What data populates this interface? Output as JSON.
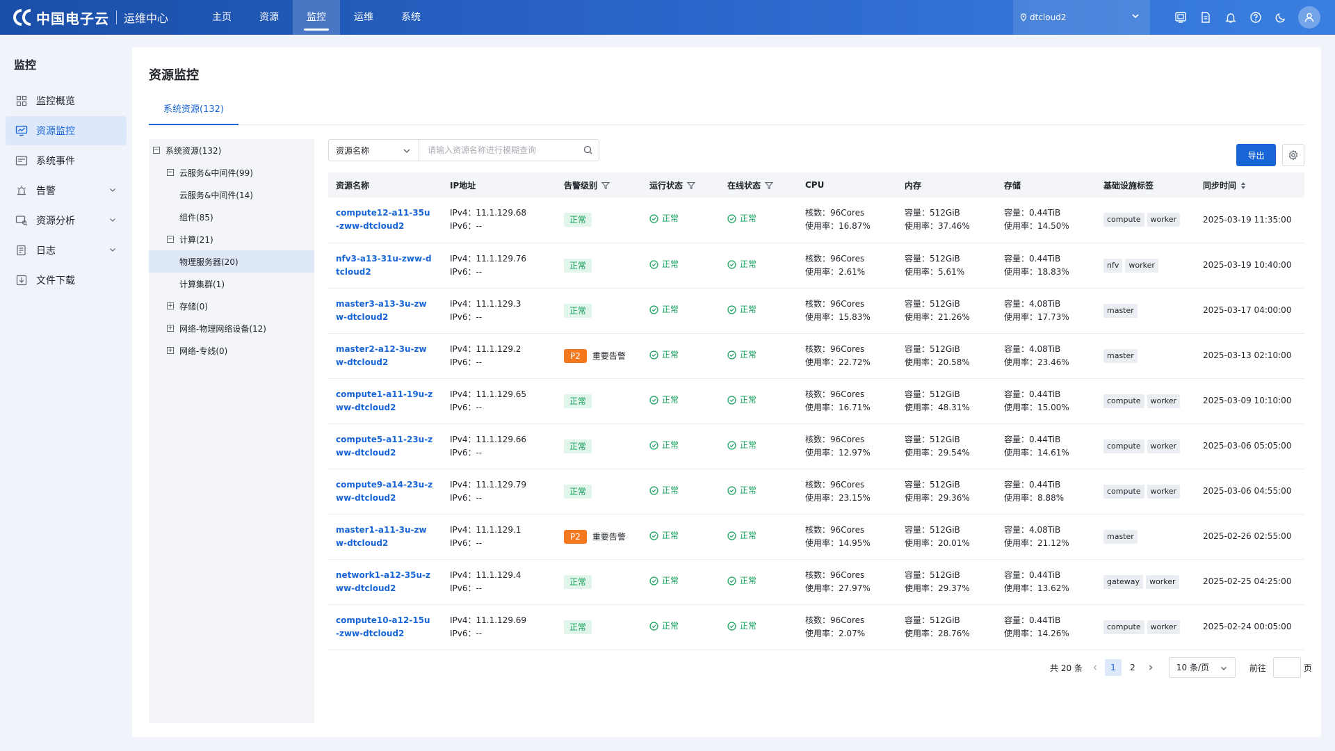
{
  "app": {
    "brand": "中国电子云",
    "subtitle": "运维中心"
  },
  "nav": [
    {
      "label": "主页",
      "active": false
    },
    {
      "label": "资源",
      "active": false
    },
    {
      "label": "监控",
      "active": true
    },
    {
      "label": "运维",
      "active": false
    },
    {
      "label": "系统",
      "active": false
    }
  ],
  "env": {
    "value": "dtcloud2"
  },
  "sidebar": {
    "title": "监控",
    "items": [
      {
        "label": "监控概览",
        "icon": "grid-icon"
      },
      {
        "label": "资源监控",
        "icon": "monitor-chart-icon",
        "active": true
      },
      {
        "label": "系统事件",
        "icon": "event-icon"
      },
      {
        "label": "告警",
        "icon": "alarm-icon",
        "expandable": true
      },
      {
        "label": "资源分析",
        "icon": "analysis-icon",
        "expandable": true
      },
      {
        "label": "日志",
        "icon": "log-icon",
        "expandable": true
      },
      {
        "label": "文件下载",
        "icon": "download-icon"
      }
    ]
  },
  "page": {
    "title": "资源监控",
    "tab": "系统资源(132)"
  },
  "tree": [
    {
      "label": "系统资源(132)",
      "level": 0,
      "toggle": "−"
    },
    {
      "label": "云服务&中间件(99)",
      "level": 1,
      "toggle": "−"
    },
    {
      "label": "云服务&中间件(14)",
      "level": 2,
      "toggle": ""
    },
    {
      "label": "组件(85)",
      "level": 2,
      "toggle": ""
    },
    {
      "label": "计算(21)",
      "level": 1,
      "toggle": "−"
    },
    {
      "label": "物理服务器(20)",
      "level": 2,
      "toggle": "",
      "selected": true
    },
    {
      "label": "计算集群(1)",
      "level": 2,
      "toggle": ""
    },
    {
      "label": "存储(0)",
      "level": 1,
      "toggle": "+"
    },
    {
      "label": "网络-物理网络设备(12)",
      "level": 1,
      "toggle": "+"
    },
    {
      "label": "网络-专线(0)",
      "level": 1,
      "toggle": "+"
    }
  ],
  "toolbar": {
    "filter_field": "资源名称",
    "search_placeholder": "请输入资源名称进行模糊查询",
    "export_label": "导出"
  },
  "table": {
    "columns": [
      "资源名称",
      "IP地址",
      "告警级别",
      "运行状态",
      "在线状态",
      "CPU",
      "内存",
      "存储",
      "基础设施标签",
      "同步时间"
    ],
    "rows": [
      {
        "name": "compute12-a11-35u-zww-dtcloud2",
        "ipv4": "IPv4：11.1.129.68",
        "ipv6": "IPv6：--",
        "alarm": "正常",
        "run": "正常",
        "online": "正常",
        "cpu1": "核数：96Cores",
        "cpu2": "使用率：16.87%",
        "mem1": "容量：512GiB",
        "mem2": "使用率：37.46%",
        "sto1": "容量：0.44TiB",
        "sto2": "使用率：14.50%",
        "tags": [
          "compute",
          "worker"
        ],
        "time": "2025-03-19 11:35:00"
      },
      {
        "name": "nfv3-a13-31u-zww-dtcloud2",
        "ipv4": "IPv4：11.1.129.76",
        "ipv6": "IPv6：--",
        "alarm": "正常",
        "run": "正常",
        "online": "正常",
        "cpu1": "核数：96Cores",
        "cpu2": "使用率：2.61%",
        "mem1": "容量：512GiB",
        "mem2": "使用率：5.61%",
        "sto1": "容量：0.44TiB",
        "sto2": "使用率：18.83%",
        "tags": [
          "nfv",
          "worker"
        ],
        "time": "2025-03-19 10:40:00"
      },
      {
        "name": "master3-a13-3u-zww-dtcloud2",
        "ipv4": "IPv4：11.1.129.3",
        "ipv6": "IPv6：--",
        "alarm": "正常",
        "run": "正常",
        "online": "正常",
        "cpu1": "核数：96Cores",
        "cpu2": "使用率：15.83%",
        "mem1": "容量：512GiB",
        "mem2": "使用率：21.26%",
        "sto1": "容量：4.08TiB",
        "sto2": "使用率：17.73%",
        "tags": [
          "master"
        ],
        "time": "2025-03-17 04:00:00"
      },
      {
        "name": "master2-a12-3u-zww-dtcloud2",
        "ipv4": "IPv4：11.1.129.2",
        "ipv6": "IPv6：--",
        "alarm": "P2",
        "alarm_text": "重要告警",
        "run": "正常",
        "online": "正常",
        "cpu1": "核数：96Cores",
        "cpu2": "使用率：22.72%",
        "mem1": "容量：512GiB",
        "mem2": "使用率：20.58%",
        "sto1": "容量：4.08TiB",
        "sto2": "使用率：23.46%",
        "tags": [
          "master"
        ],
        "time": "2025-03-13 02:10:00"
      },
      {
        "name": "compute1-a11-19u-zww-dtcloud2",
        "ipv4": "IPv4：11.1.129.65",
        "ipv6": "IPv6：--",
        "alarm": "正常",
        "run": "正常",
        "online": "正常",
        "cpu1": "核数：96Cores",
        "cpu2": "使用率：16.71%",
        "mem1": "容量：512GiB",
        "mem2": "使用率：48.31%",
        "sto1": "容量：0.44TiB",
        "sto2": "使用率：15.00%",
        "tags": [
          "compute",
          "worker"
        ],
        "time": "2025-03-09 10:10:00"
      },
      {
        "name": "compute5-a11-23u-zww-dtcloud2",
        "ipv4": "IPv4：11.1.129.66",
        "ipv6": "IPv6：--",
        "alarm": "正常",
        "run": "正常",
        "online": "正常",
        "cpu1": "核数：96Cores",
        "cpu2": "使用率：12.97%",
        "mem1": "容量：512GiB",
        "mem2": "使用率：29.54%",
        "sto1": "容量：0.44TiB",
        "sto2": "使用率：14.61%",
        "tags": [
          "compute",
          "worker"
        ],
        "time": "2025-03-06 05:05:00"
      },
      {
        "name": "compute9-a14-23u-zww-dtcloud2",
        "ipv4": "IPv4：11.1.129.79",
        "ipv6": "IPv6：--",
        "alarm": "正常",
        "run": "正常",
        "online": "正常",
        "cpu1": "核数：96Cores",
        "cpu2": "使用率：23.15%",
        "mem1": "容量：512GiB",
        "mem2": "使用率：29.36%",
        "sto1": "容量：0.44TiB",
        "sto2": "使用率：8.88%",
        "tags": [
          "compute",
          "worker"
        ],
        "time": "2025-03-06 04:55:00"
      },
      {
        "name": "master1-a11-3u-zww-dtcloud2",
        "ipv4": "IPv4：11.1.129.1",
        "ipv6": "IPv6：--",
        "alarm": "P2",
        "alarm_text": "重要告警",
        "run": "正常",
        "online": "正常",
        "cpu1": "核数：96Cores",
        "cpu2": "使用率：14.95%",
        "mem1": "容量：512GiB",
        "mem2": "使用率：20.01%",
        "sto1": "容量：4.08TiB",
        "sto2": "使用率：21.12%",
        "tags": [
          "master"
        ],
        "time": "2025-02-26 02:55:00"
      },
      {
        "name": "network1-a12-35u-zww-dtcloud2",
        "ipv4": "IPv4：11.1.129.4",
        "ipv6": "IPv6：--",
        "alarm": "正常",
        "run": "正常",
        "online": "正常",
        "cpu1": "核数：96Cores",
        "cpu2": "使用率：27.97%",
        "mem1": "容量：512GiB",
        "mem2": "使用率：29.37%",
        "sto1": "容量：0.44TiB",
        "sto2": "使用率：13.62%",
        "tags": [
          "gateway",
          "worker"
        ],
        "time": "2025-02-25 04:25:00"
      },
      {
        "name": "compute10-a12-15u-zww-dtcloud2",
        "ipv4": "IPv4：11.1.129.69",
        "ipv6": "IPv6：--",
        "alarm": "正常",
        "run": "正常",
        "online": "正常",
        "cpu1": "核数：96Cores",
        "cpu2": "使用率：2.07%",
        "mem1": "容量：512GiB",
        "mem2": "使用率：28.76%",
        "sto1": "容量：0.44TiB",
        "sto2": "使用率：14.26%",
        "tags": [
          "compute",
          "worker"
        ],
        "time": "2025-02-24 00:05:00"
      }
    ]
  },
  "pagination": {
    "total": "共 20 条",
    "pages": [
      "1",
      "2"
    ],
    "current": "1",
    "page_size": "10 条/页",
    "goto_label": "前往",
    "goto_suffix": "页"
  },
  "colors": {
    "primary": "#1765d6",
    "success": "#13a05a",
    "warning": "#f5781f"
  }
}
